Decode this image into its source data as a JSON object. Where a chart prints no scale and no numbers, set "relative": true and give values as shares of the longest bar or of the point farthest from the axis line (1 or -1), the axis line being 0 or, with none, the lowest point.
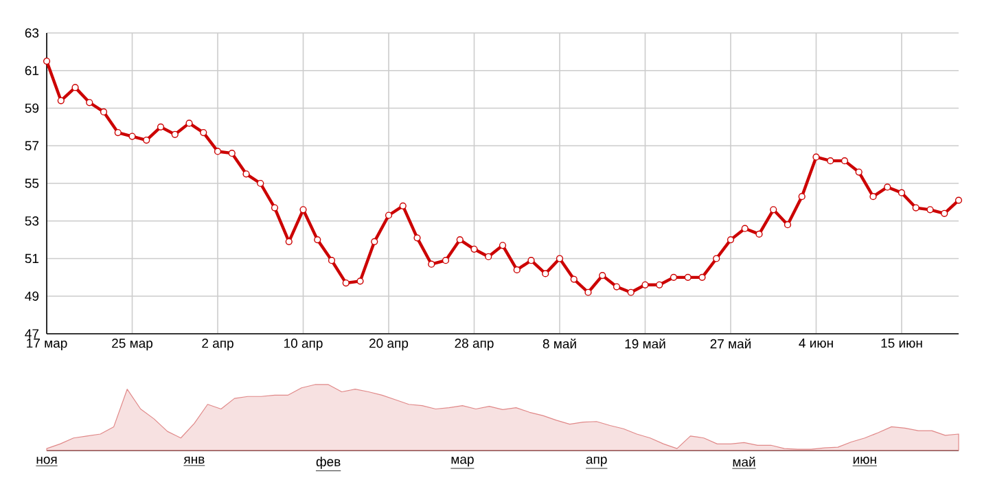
{
  "chart_data": [
    {
      "type": "line",
      "categories": [
        "17 мар",
        null,
        null,
        null,
        null,
        null,
        "25 мар",
        null,
        null,
        null,
        null,
        null,
        "2 апр",
        null,
        null,
        null,
        null,
        null,
        "10 апр",
        null,
        null,
        null,
        null,
        null,
        "20 апр",
        null,
        null,
        null,
        null,
        null,
        "28 апр",
        null,
        null,
        null,
        null,
        null,
        "8 май",
        null,
        null,
        null,
        null,
        null,
        "19 май",
        null,
        null,
        null,
        null,
        null,
        "27 май",
        null,
        null,
        null,
        null,
        null,
        "4 июн",
        null,
        null,
        null,
        null,
        null,
        "15 июн",
        null,
        null,
        null,
        null
      ],
      "series": [
        {
          "color": "#cc0000",
          "values": [
            61.5,
            59.4,
            60.1,
            59.3,
            58.8,
            57.7,
            57.5,
            57.3,
            58.0,
            57.6,
            58.2,
            57.7,
            56.7,
            56.6,
            55.5,
            55.0,
            53.7,
            51.9,
            53.6,
            52.0,
            50.9,
            49.7,
            49.8,
            51.9,
            53.3,
            53.8,
            52.1,
            50.7,
            50.9,
            52.0,
            51.5,
            51.1,
            51.7,
            50.4,
            50.9,
            50.2,
            51.0,
            49.9,
            49.2,
            50.1,
            49.5,
            49.2,
            49.6,
            49.6,
            50.0,
            50.0,
            50.0,
            51.0,
            52.0,
            52.6,
            52.3,
            53.6,
            52.8,
            54.3,
            56.4,
            56.2,
            56.2,
            55.6,
            54.3,
            54.8,
            54.5,
            53.7,
            53.6,
            53.4,
            54.1
          ]
        }
      ],
      "ylim": [
        47,
        63
      ],
      "yticks": [
        47,
        49,
        51,
        53,
        55,
        57,
        59,
        61,
        63
      ],
      "grid": true,
      "marker": "circle"
    },
    {
      "type": "area",
      "relative": true,
      "color": "#e08888",
      "categories": [
        "ноя",
        null,
        null,
        null,
        null,
        null,
        null,
        null,
        null,
        null,
        null,
        "янв",
        null,
        null,
        null,
        null,
        null,
        null,
        null,
        null,
        null,
        "фев",
        null,
        null,
        null,
        null,
        null,
        null,
        null,
        null,
        null,
        "мар",
        null,
        null,
        null,
        null,
        null,
        null,
        null,
        null,
        null,
        "апр",
        null,
        null,
        null,
        null,
        null,
        null,
        null,
        null,
        null,
        null,
        "май",
        null,
        null,
        null,
        null,
        null,
        null,
        null,
        null,
        "июн",
        null,
        null,
        null,
        null,
        null,
        null,
        null
      ],
      "values": [
        0.03,
        0.1,
        0.19,
        0.22,
        0.25,
        0.36,
        0.93,
        0.63,
        0.48,
        0.29,
        0.19,
        0.41,
        0.7,
        0.63,
        0.79,
        0.82,
        0.82,
        0.84,
        0.84,
        0.95,
        1.0,
        1.0,
        0.89,
        0.93,
        0.89,
        0.84,
        0.77,
        0.7,
        0.68,
        0.63,
        0.65,
        0.68,
        0.63,
        0.67,
        0.62,
        0.65,
        0.58,
        0.53,
        0.46,
        0.4,
        0.43,
        0.44,
        0.38,
        0.33,
        0.25,
        0.19,
        0.1,
        0.03,
        0.22,
        0.19,
        0.1,
        0.1,
        0.12,
        0.08,
        0.08,
        0.03,
        0.02,
        0.02,
        0.04,
        0.05,
        0.13,
        0.19,
        0.27,
        0.36,
        0.34,
        0.3,
        0.3,
        0.23,
        0.25
      ]
    }
  ]
}
